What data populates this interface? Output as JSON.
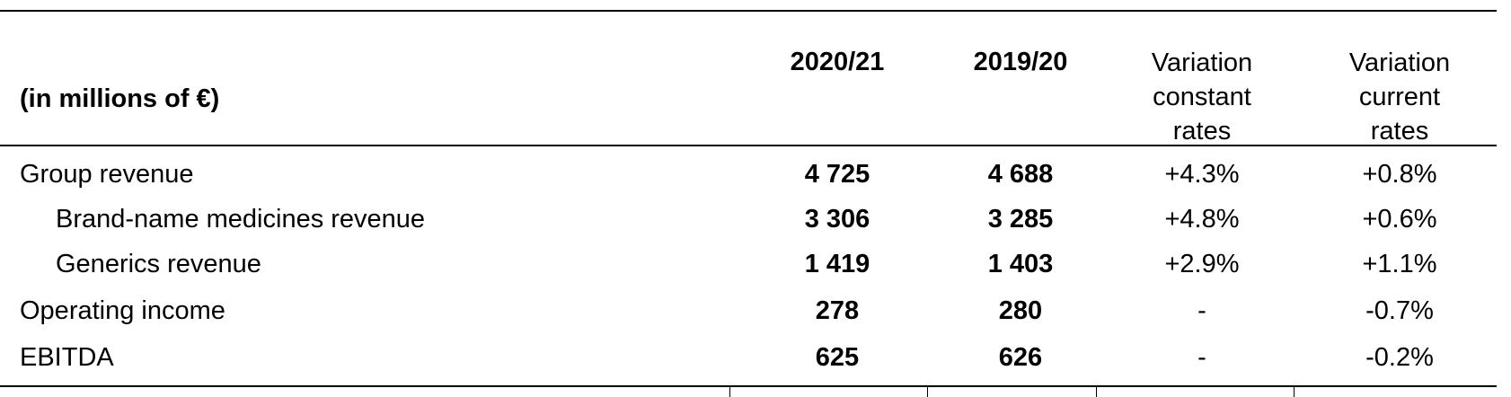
{
  "table": {
    "unit_label": "(in millions of €)",
    "columns": {
      "y1": "2020/21",
      "y2": "2019/20",
      "var_const": [
        "Variation",
        "constant",
        "rates"
      ],
      "var_curr": [
        "Variation",
        "current",
        "rates"
      ]
    },
    "rows": [
      {
        "label": "Group revenue",
        "y1": "4 725",
        "y2": "4 688",
        "var_const": "+4.3%",
        "var_curr": "+0.8%"
      },
      {
        "label": "Brand-name medicines revenue",
        "y1": "3 306",
        "y2": "3 285",
        "var_const": "+4.8%",
        "var_curr": "+0.6%"
      },
      {
        "label": "Generics revenue",
        "y1": "1 419",
        "y2": "1 403",
        "var_const": "+2.9%",
        "var_curr": "+1.1%"
      },
      {
        "label": "Operating income",
        "y1": "278",
        "y2": "280",
        "var_const": "-",
        "var_curr": "-0.7%"
      },
      {
        "label": "EBITDA",
        "y1": "625",
        "y2": "626",
        "var_const": "-",
        "var_curr": "-0.2%"
      }
    ]
  }
}
